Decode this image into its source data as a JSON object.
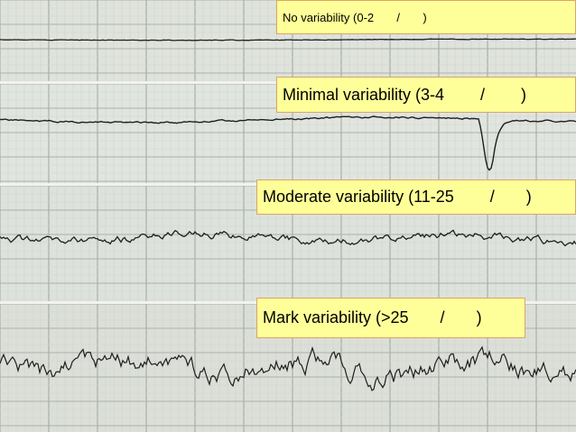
{
  "labels": {
    "no_variability": "No variability (0-2       /       )",
    "minimal_variability": "Minimal variability (3-4        /        )",
    "moderate_variability": "Moderate variability (11-25        /       )",
    "mark_variability": "Mark variability (>25       /       )"
  },
  "colors": {
    "label_fill": "#ffff99",
    "label_border": "#d9a56a",
    "paper": "#dfe3dc",
    "grid": "#b9c3bb",
    "trace": "#1e1e1e",
    "divider": "#f2f2ee"
  }
}
